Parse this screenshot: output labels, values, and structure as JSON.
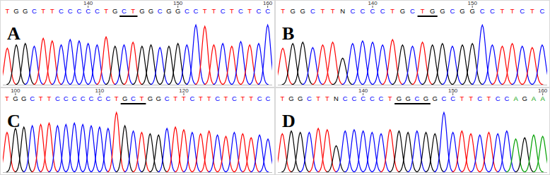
{
  "chart_data": [
    {
      "type": "chromatogram",
      "title": "A",
      "x": [
        131,
        132,
        133,
        134,
        135,
        136,
        137,
        138,
        139,
        140,
        141,
        142,
        143,
        144,
        145,
        146,
        147,
        148,
        149,
        150,
        151,
        152,
        153,
        154,
        155,
        156,
        157,
        158,
        159,
        160
      ],
      "base_calls": [
        "T",
        "G",
        "G",
        "C",
        "T",
        "T",
        "C",
        "C",
        "C",
        "C",
        "C",
        "T",
        "G",
        "C",
        "T",
        "G",
        "G",
        "C",
        "G",
        "G",
        "C",
        "C",
        "T",
        "T",
        "C",
        "T",
        "C",
        "T",
        "C",
        "C"
      ],
      "values": [
        55,
        60,
        62,
        58,
        70,
        66,
        60,
        68,
        66,
        62,
        60,
        72,
        58,
        60,
        64,
        58,
        60,
        56,
        58,
        62,
        60,
        90,
        88,
        60,
        62,
        58,
        65,
        60,
        62,
        90
      ],
      "colors": [
        "#ff0000",
        "#000000",
        "#000000",
        "#0000ff",
        "#ff0000",
        "#ff0000",
        "#0000ff",
        "#0000ff",
        "#0000ff",
        "#0000ff",
        "#0000ff",
        "#ff0000",
        "#000000",
        "#0000ff",
        "#ff0000",
        "#000000",
        "#000000",
        "#0000ff",
        "#000000",
        "#000000",
        "#0000ff",
        "#0000ff",
        "#ff0000",
        "#ff0000",
        "#0000ff",
        "#ff0000",
        "#0000ff",
        "#ff0000",
        "#0000ff",
        "#0000ff"
      ],
      "xlim": [
        130.5,
        160.5
      ],
      "xticks": [
        140,
        150,
        160
      ],
      "ylim": [
        0,
        100
      ],
      "tick_labels": "x",
      "highlight": [
        144,
        145
      ]
    },
    {
      "type": "chromatogram",
      "title": "B",
      "x": [
        131,
        132,
        133,
        134,
        135,
        136,
        137,
        138,
        139,
        140,
        141,
        142,
        143,
        144,
        145,
        146,
        147,
        148,
        149,
        150,
        151,
        152,
        153,
        154,
        155,
        156,
        157
      ],
      "base_calls": [
        "T",
        "G",
        "G",
        "C",
        "T",
        "T",
        "N",
        "C",
        "C",
        "C",
        "C",
        "T",
        "G",
        "C",
        "T",
        "G",
        "G",
        "C",
        "G",
        "G",
        "C",
        "C",
        "T",
        "T",
        "C",
        "T",
        "C"
      ],
      "values": [
        55,
        62,
        64,
        56,
        60,
        64,
        40,
        62,
        66,
        64,
        60,
        68,
        60,
        58,
        64,
        60,
        62,
        58,
        60,
        62,
        90,
        60,
        58,
        62,
        58,
        56,
        60
      ],
      "colors": [
        "#ff0000",
        "#000000",
        "#000000",
        "#0000ff",
        "#ff0000",
        "#ff0000",
        "#000000",
        "#0000ff",
        "#0000ff",
        "#0000ff",
        "#0000ff",
        "#ff0000",
        "#000000",
        "#0000ff",
        "#ff0000",
        "#000000",
        "#000000",
        "#0000ff",
        "#000000",
        "#000000",
        "#0000ff",
        "#0000ff",
        "#ff0000",
        "#ff0000",
        "#0000ff",
        "#ff0000",
        "#0000ff"
      ],
      "xlim": [
        130.5,
        157.5
      ],
      "xticks": [
        140,
        150
      ],
      "ylim": [
        0,
        100
      ],
      "tick_labels": "x",
      "highlight": [
        145,
        146
      ]
    },
    {
      "type": "chromatogram",
      "title": "C",
      "x": [
        99,
        100,
        101,
        102,
        103,
        104,
        105,
        106,
        107,
        108,
        109,
        110,
        111,
        112,
        113,
        114,
        115,
        116,
        117,
        118,
        119,
        120,
        121,
        122,
        123,
        124,
        125,
        126,
        127,
        128,
        129,
        130
      ],
      "base_calls": [
        "T",
        "G",
        "G",
        "C",
        "T",
        "T",
        "C",
        "C",
        "C",
        "C",
        "C",
        "C",
        "C",
        "T",
        "G",
        "C",
        "T",
        "G",
        "G",
        "C",
        "T",
        "T",
        "C",
        "T",
        "T",
        "C",
        "T",
        "C",
        "T",
        "T",
        "C",
        "C"
      ],
      "values": [
        60,
        66,
        68,
        70,
        72,
        74,
        70,
        72,
        74,
        72,
        70,
        68,
        66,
        90,
        70,
        62,
        60,
        58,
        56,
        66,
        68,
        64,
        60,
        58,
        62,
        56,
        54,
        60,
        58,
        52,
        56,
        50
      ],
      "colors": [
        "#ff0000",
        "#000000",
        "#000000",
        "#0000ff",
        "#ff0000",
        "#ff0000",
        "#0000ff",
        "#0000ff",
        "#0000ff",
        "#0000ff",
        "#0000ff",
        "#0000ff",
        "#0000ff",
        "#ff0000",
        "#000000",
        "#0000ff",
        "#ff0000",
        "#000000",
        "#000000",
        "#0000ff",
        "#ff0000",
        "#ff0000",
        "#0000ff",
        "#ff0000",
        "#ff0000",
        "#0000ff",
        "#ff0000",
        "#0000ff",
        "#ff0000",
        "#ff0000",
        "#0000ff",
        "#0000ff"
      ],
      "xlim": [
        98.5,
        130.5
      ],
      "xticks": [
        100,
        110,
        120
      ],
      "ylim": [
        0,
        100
      ],
      "tick_labels": "x",
      "highlight": [
        113,
        115
      ]
    },
    {
      "type": "chromatogram",
      "title": "D",
      "x": [
        131,
        132,
        133,
        134,
        135,
        136,
        137,
        138,
        139,
        140,
        141,
        142,
        143,
        144,
        145,
        146,
        147,
        148,
        149,
        150,
        151,
        152,
        153,
        154,
        155,
        156,
        157,
        158,
        159,
        160
      ],
      "base_calls": [
        "T",
        "G",
        "G",
        "C",
        "T",
        "T",
        "N",
        "C",
        "C",
        "C",
        "C",
        "C",
        "T",
        "G",
        "G",
        "C",
        "G",
        "G",
        "C",
        "C",
        "T",
        "T",
        "C",
        "T",
        "C",
        "C",
        "A",
        "G",
        "A",
        "A"
      ],
      "values": [
        58,
        62,
        60,
        60,
        66,
        64,
        40,
        62,
        64,
        62,
        60,
        58,
        64,
        62,
        60,
        62,
        60,
        58,
        90,
        60,
        62,
        58,
        56,
        60,
        58,
        62,
        50,
        52,
        56,
        54
      ],
      "colors": [
        "#ff0000",
        "#000000",
        "#000000",
        "#0000ff",
        "#ff0000",
        "#ff0000",
        "#000000",
        "#0000ff",
        "#0000ff",
        "#0000ff",
        "#0000ff",
        "#0000ff",
        "#ff0000",
        "#000000",
        "#000000",
        "#0000ff",
        "#000000",
        "#000000",
        "#0000ff",
        "#0000ff",
        "#ff0000",
        "#ff0000",
        "#0000ff",
        "#ff0000",
        "#0000ff",
        "#0000ff",
        "#00a000",
        "#000000",
        "#00a000",
        "#00a000"
      ],
      "xlim": [
        130.5,
        160.5
      ],
      "xticks": [
        140,
        150,
        160
      ],
      "ylim": [
        0,
        100
      ],
      "tick_labels": "x",
      "highlight": [
        144,
        147
      ]
    }
  ]
}
